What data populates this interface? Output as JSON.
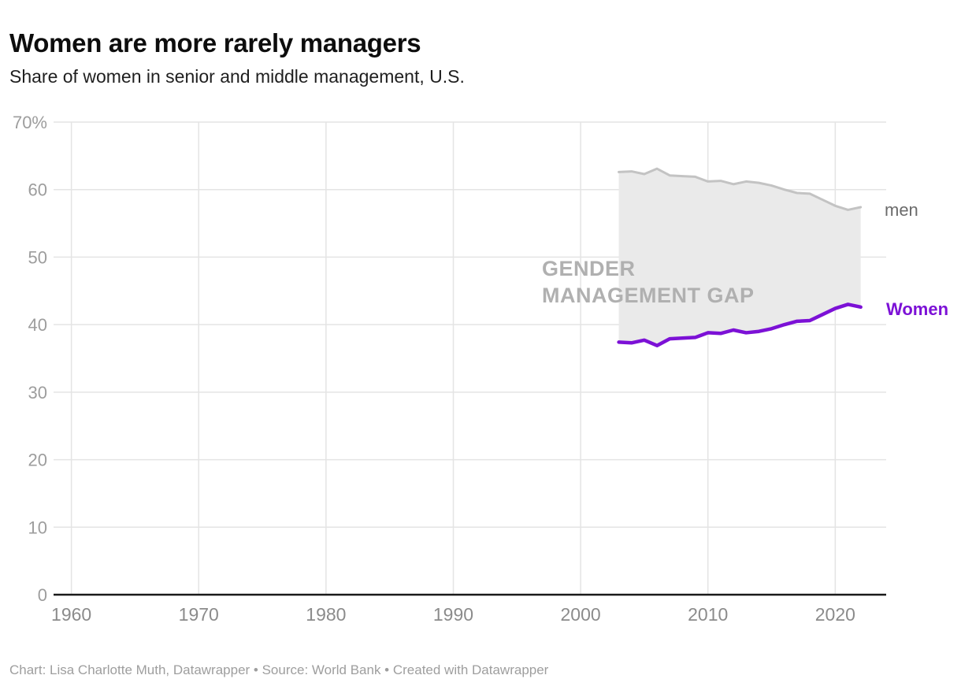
{
  "header": {
    "title": "Women are more rarely managers",
    "subtitle": "Share of women in senior and middle management, U.S."
  },
  "labels": {
    "gap_line1": "GENDER",
    "gap_line2": "MANAGEMENT GAP",
    "men": "men",
    "women": "Women"
  },
  "footer": {
    "text": "Chart: Lisa Charlotte Muth, Datawrapper • Source: World Bank • Created with Datawrapper"
  },
  "chart_data": {
    "type": "area",
    "title": "Women are more rarely managers",
    "subtitle": "Share of women in senior and middle management, U.S.",
    "x": [
      2003,
      2004,
      2005,
      2006,
      2007,
      2008,
      2009,
      2010,
      2011,
      2012,
      2013,
      2014,
      2015,
      2016,
      2017,
      2018,
      2019,
      2020,
      2021,
      2022
    ],
    "series": [
      {
        "name": "men",
        "color": "#c3c3c3",
        "values": [
          62.6,
          62.7,
          62.3,
          63.1,
          62.1,
          62.0,
          61.9,
          61.2,
          61.3,
          60.8,
          61.2,
          61.0,
          60.6,
          60.0,
          59.5,
          59.4,
          58.5,
          57.6,
          57.0,
          57.4
        ]
      },
      {
        "name": "Women",
        "color": "#7c11d6",
        "values": [
          37.4,
          37.3,
          37.7,
          36.9,
          37.9,
          38.0,
          38.1,
          38.8,
          38.7,
          39.2,
          38.8,
          39.0,
          39.4,
          40.0,
          40.5,
          40.6,
          41.5,
          42.4,
          43.0,
          42.6
        ]
      }
    ],
    "annotation": "GENDER MANAGEMENT GAP",
    "xlabel": "",
    "ylabel": "",
    "xlim": [
      1958.6,
      2024.0
    ],
    "ylim": [
      0,
      70
    ],
    "x_ticks": [
      1960,
      1970,
      1980,
      1990,
      2000,
      2010,
      2020
    ],
    "y_ticks": [
      0,
      10,
      20,
      30,
      40,
      50,
      60,
      70
    ],
    "y_tick_labels": [
      "0",
      "10",
      "20",
      "30",
      "40",
      "50",
      "60",
      "70%"
    ],
    "grid": true,
    "legend_position": "right-of-line-ends",
    "colors": {
      "area": "#eaeaea",
      "grid": "#e4e4e4",
      "axis": "#1a1a1a",
      "gap_label": "#b0b0b0",
      "men_label": "#6b6b6b",
      "y_tick": "#9d9d9d",
      "x_tick": "#8b8b8b"
    }
  }
}
